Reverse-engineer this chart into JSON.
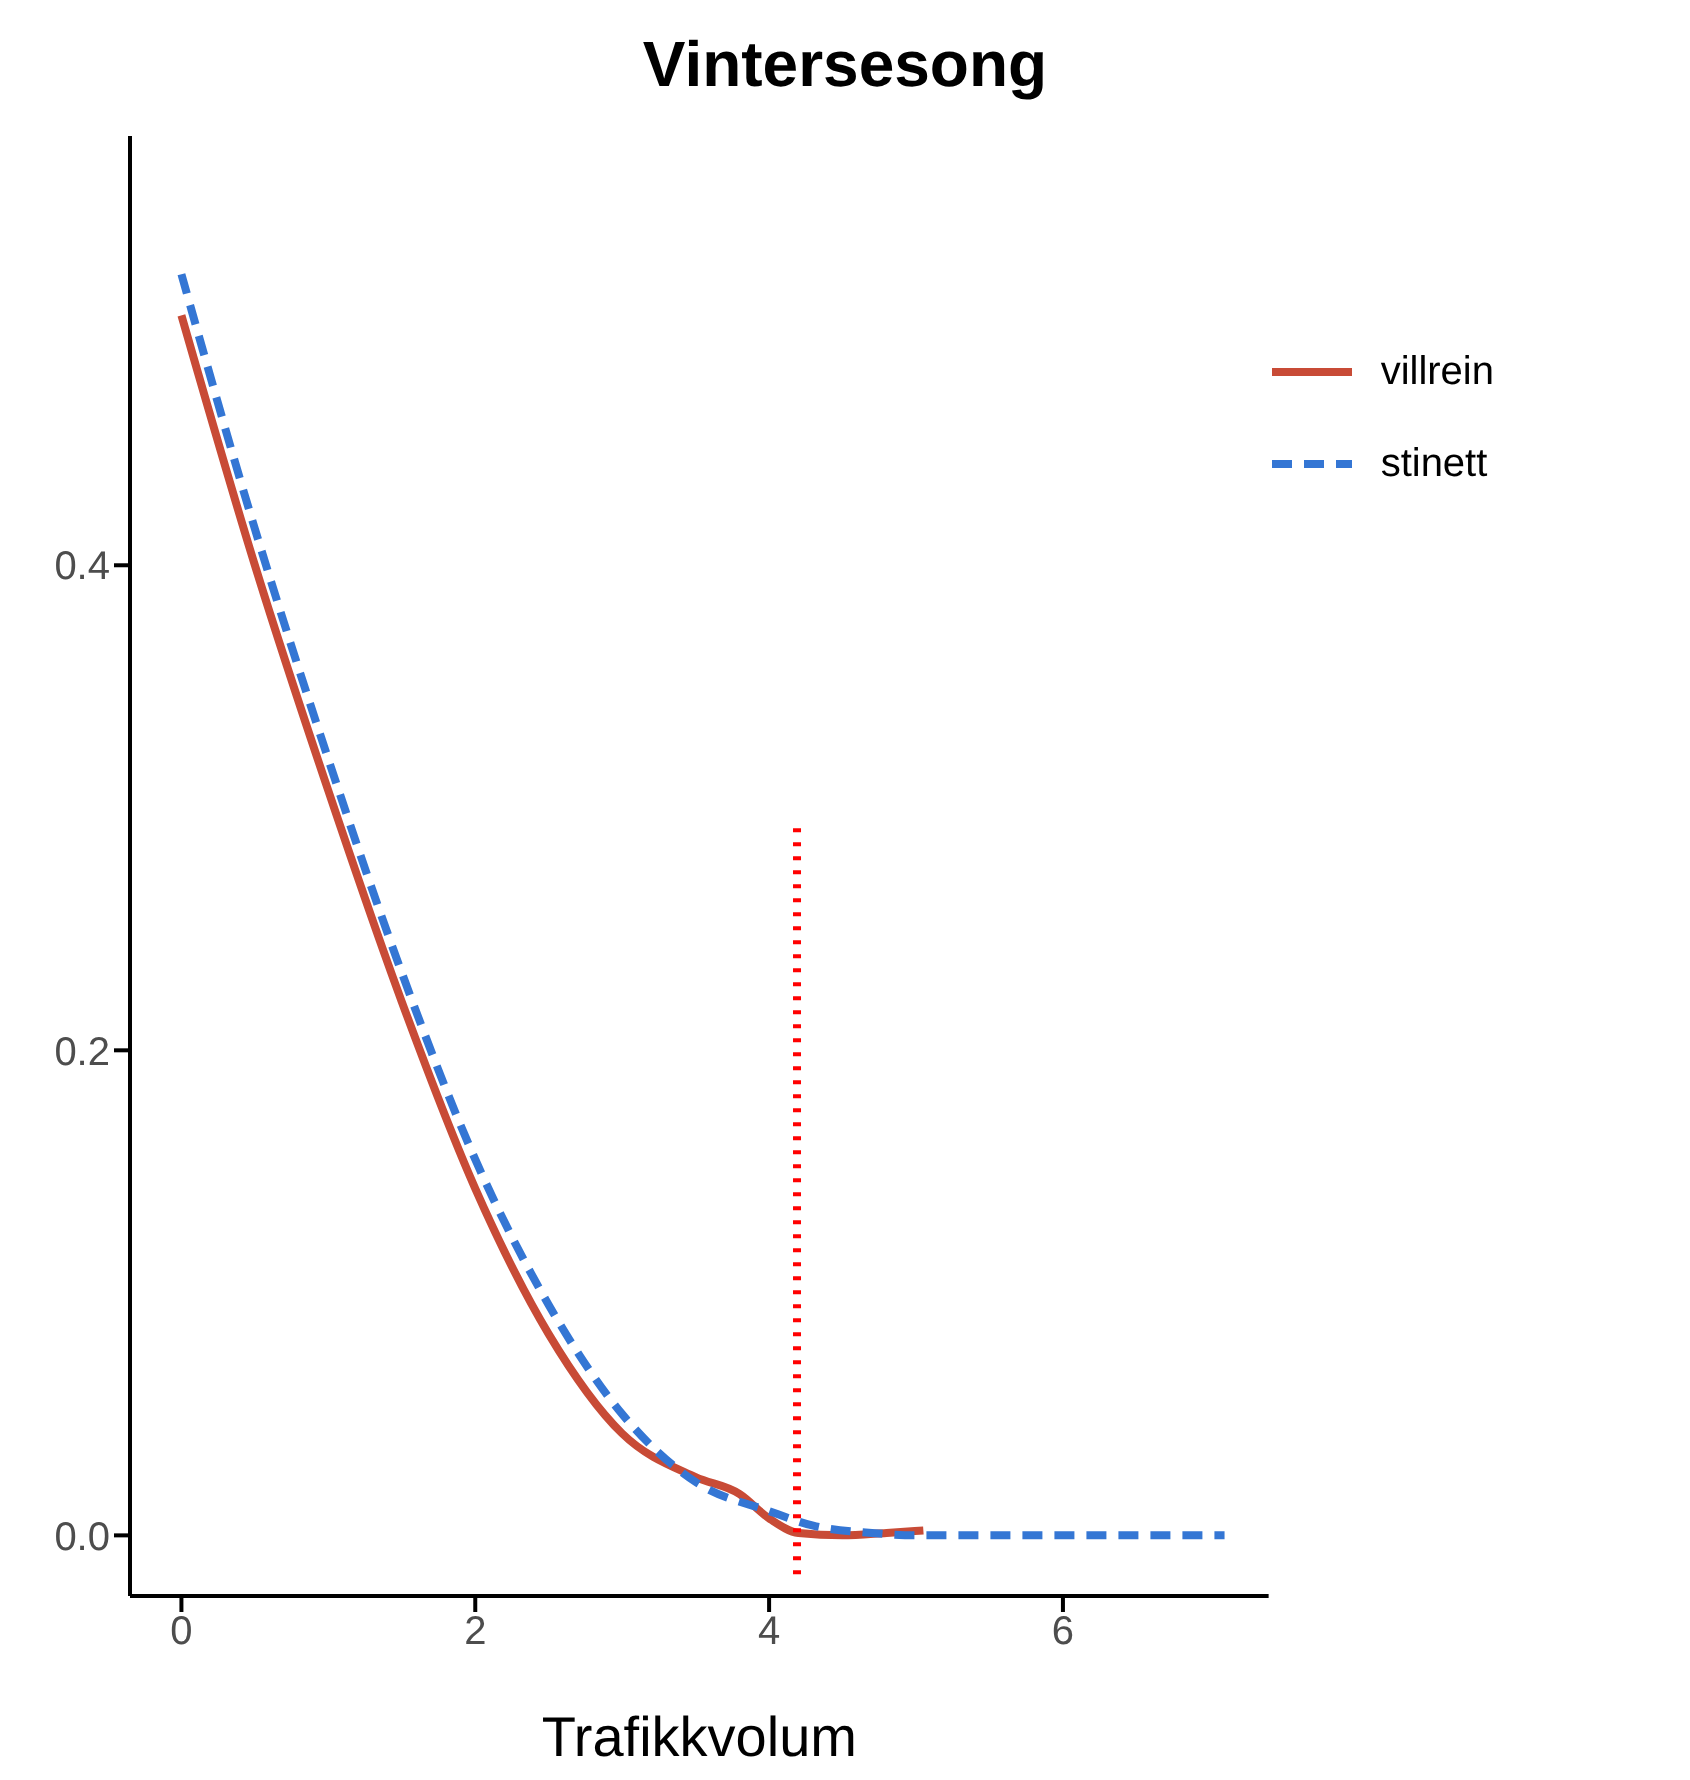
{
  "chart_data": {
    "type": "line",
    "title": "Vintersesong",
    "xlabel": "Trafikkvolum",
    "xlim": [
      -0.35,
      7.4
    ],
    "xticks": [
      0,
      2,
      4,
      6
    ],
    "ylim": [
      -0.025,
      0.577
    ],
    "yticks": [
      {
        "value": 0,
        "label": "0.0"
      },
      {
        "value": 0.2,
        "label": "0.2"
      },
      {
        "value": 0.4,
        "label": "0.4"
      }
    ],
    "grid": false,
    "legend": "top right",
    "marker": "none",
    "series": [
      {
        "name": "villrein",
        "color": "#c84b36",
        "line_style": "solid",
        "x": [
          0,
          0.5,
          1,
          1.5,
          2,
          2.5,
          3,
          3.5,
          3.8,
          4,
          4.2,
          4.5,
          4.8,
          5.05
        ],
        "values": [
          0.503,
          0.4,
          0.307,
          0.22,
          0.143,
          0.083,
          0.042,
          0.024,
          0.017,
          0.007,
          0.001,
          0,
          0.001,
          0.002
        ]
      },
      {
        "name": "stinett",
        "color": "#3476d4",
        "line_style": "dashed",
        "x": [
          0,
          0.5,
          1,
          1.5,
          2,
          2.5,
          3,
          3.5,
          4,
          4.3,
          4.7,
          5,
          6,
          7.1
        ],
        "values": [
          0.52,
          0.415,
          0.32,
          0.232,
          0.155,
          0.095,
          0.05,
          0.022,
          0.01,
          0.004,
          0.001,
          0,
          0,
          0
        ]
      },
      {
        "color": "#ff0000",
        "line_style": "dotted",
        "x": [
          4.19,
          4.19
        ],
        "values": [
          -0.016,
          0.294
        ]
      }
    ]
  }
}
